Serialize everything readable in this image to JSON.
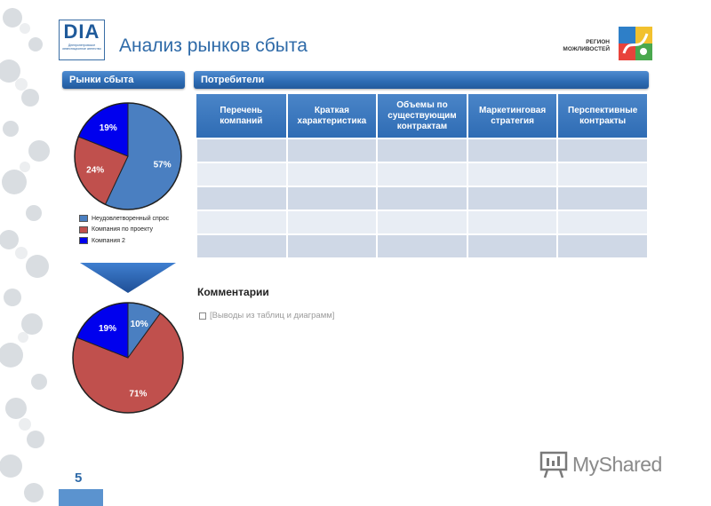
{
  "header": {
    "logo_text": "DIA",
    "logo_subtext": "Днепропетровское инвестиционное агентство",
    "title": "Анализ рынков сбыта",
    "region_line1": "РЕГИОН",
    "region_line2": "МОЖЛИВОСТЕЙ"
  },
  "sections": {
    "markets": "Рынки сбыта",
    "consumers": "Потребители"
  },
  "chart_data": [
    {
      "type": "pie",
      "title": "",
      "slices": [
        {
          "label": "Неудовлетворенный спрос",
          "value": 57,
          "color": "#4a7fc1",
          "display": "57%"
        },
        {
          "label": "Компания по проекту",
          "value": 24,
          "color": "#c0504d",
          "display": "24%"
        },
        {
          "label": "Компания 2",
          "value": 19,
          "color": "#0000ee",
          "display": "19%"
        }
      ],
      "legend_placement": "bottom"
    },
    {
      "type": "pie",
      "title": "",
      "slices": [
        {
          "label": "Неудовлетворенный спрос",
          "value": 10,
          "color": "#4a7fc1",
          "display": "10%"
        },
        {
          "label": "Компания по проекту",
          "value": 71,
          "color": "#c0504d",
          "display": "71%"
        },
        {
          "label": "Компания 2",
          "value": 19,
          "color": "#0000ee",
          "display": "19%"
        }
      ]
    }
  ],
  "legend": [
    {
      "label": "Неудовлетворенный спрос",
      "color": "#4a7fc1"
    },
    {
      "label": "Компания по проекту",
      "color": "#c0504d"
    },
    {
      "label": "Компания 2",
      "color": "#0000ee"
    }
  ],
  "table": {
    "headers": [
      "Перечень компаний",
      "Краткая характеристика",
      "Объемы по существующим контрактам",
      "Маркетинговая стратегия",
      "Перспективные контракты"
    ]
  },
  "comments": {
    "title": "Комментарии",
    "item": "[Выводы из таблиц и диаграмм]"
  },
  "page_number": "5",
  "watermark": "MyShared",
  "icons": {
    "floral": "floral-ornament-icon",
    "region": "region-logo-icon",
    "arrow": "down-arrow-icon",
    "watermark": "presentation-icon"
  }
}
